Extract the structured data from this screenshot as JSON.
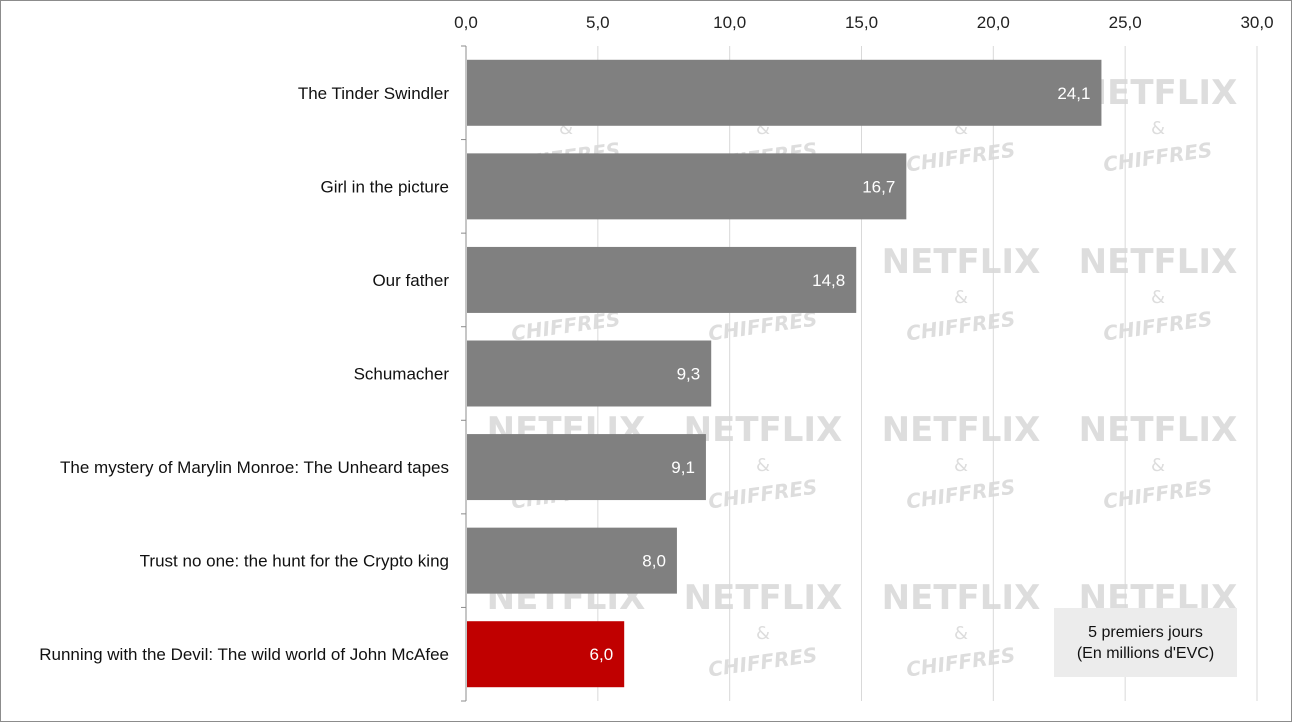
{
  "chart_data": {
    "type": "bar",
    "orientation": "horizontal",
    "categories": [
      "The Tinder Swindler",
      "Girl in the picture",
      "Our father",
      "Schumacher",
      "The mystery of Marylin Monroe: The Unheard tapes",
      "Trust no one: the hunt for the Crypto king",
      "Running with the Devil: The wild world of John McAfee"
    ],
    "values": [
      24.1,
      16.7,
      14.8,
      9.3,
      9.1,
      8.0,
      6.0
    ],
    "value_labels": [
      "24,1",
      "16,7",
      "14,8",
      "9,3",
      "9,1",
      "8,0",
      "6,0"
    ],
    "xlim": [
      0,
      30
    ],
    "xticks": [
      "0,0",
      "5,0",
      "10,0",
      "15,0",
      "20,0",
      "25,0",
      "30,0"
    ],
    "x_axis_position": "top",
    "grid": true,
    "bar_colors": [
      "#808080",
      "#808080",
      "#808080",
      "#808080",
      "#808080",
      "#808080",
      "#c00000"
    ],
    "gridline_color": "#d9d9d9",
    "legend_note": {
      "line1": "5 premiers jours",
      "line2": "(En millions d'EVC)",
      "placement": "bottom-right"
    },
    "watermark": [
      "NETFLIX",
      "&",
      "CHIFFRES"
    ]
  }
}
